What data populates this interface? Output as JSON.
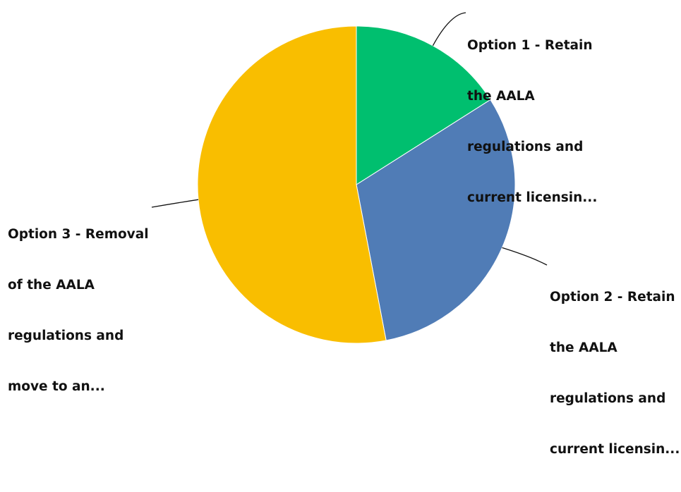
{
  "chart_data": {
    "type": "pie",
    "title": "",
    "slices": [
      {
        "label_lines": [
          "Option 1 - Retain",
          "the AALA",
          "regulations and",
          "current licensin..."
        ],
        "value": 16,
        "color": "#00bf6f"
      },
      {
        "label_lines": [
          "Option 2 - Retain",
          "the AALA",
          "regulations and",
          "current licensin..."
        ],
        "value": 31,
        "color": "#507cb6"
      },
      {
        "label_lines": [
          "Option 3 - Removal",
          "of the AALA",
          "regulations and",
          "move to an..."
        ],
        "value": 53,
        "color": "#f9be00"
      }
    ],
    "start_angle": "12 o'clock",
    "direction": "clockwise",
    "legend": "none"
  }
}
